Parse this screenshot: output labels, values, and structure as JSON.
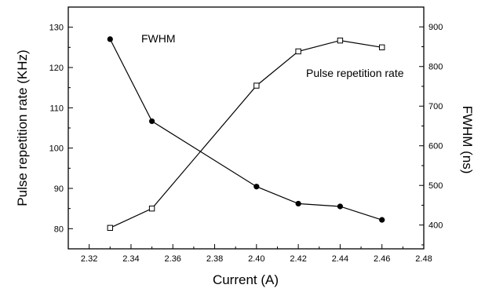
{
  "chart_data": {
    "type": "line",
    "x": [
      2.33,
      2.35,
      2.4,
      2.42,
      2.44,
      2.46
    ],
    "xlabel": "Current (A)",
    "xlim": [
      2.31,
      2.48
    ],
    "xticks": [
      "2.32",
      "2.34",
      "2.36",
      "2.38",
      "2.40",
      "2.42",
      "2.44",
      "2.46",
      "2.48"
    ],
    "ylabel_left": "Pulse repetition rate (KHz)",
    "ylim_left": [
      75,
      135
    ],
    "yticks_left": [
      "80",
      "90",
      "100",
      "110",
      "120",
      "130"
    ],
    "ylabel_right": "FWHM (ns)",
    "ylim_right": [
      340,
      950
    ],
    "yticks_right": [
      "400",
      "500",
      "600",
      "700",
      "800",
      "900"
    ],
    "grid": false,
    "series": [
      {
        "name": "FWHM",
        "axis": "right",
        "marker": "filled-circle",
        "color": "#000000",
        "values": [
          869,
          662,
          497,
          454,
          447,
          413
        ]
      },
      {
        "name": "Pulse repetition rate",
        "axis": "left",
        "marker": "open-square",
        "color": "#000000",
        "values": [
          80.2,
          85.0,
          115.5,
          124.0,
          126.7,
          125.0
        ]
      }
    ]
  }
}
